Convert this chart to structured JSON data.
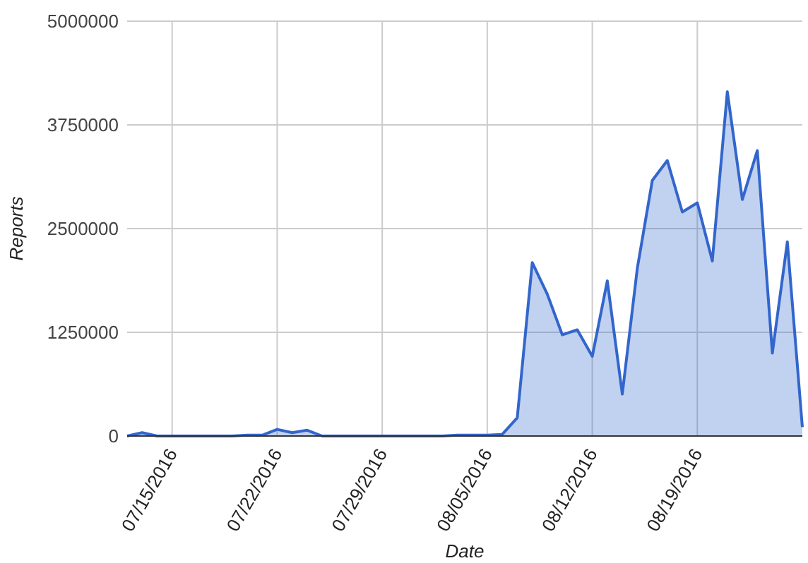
{
  "chart_data": {
    "type": "area",
    "xlabel": "Date",
    "ylabel": "Reports",
    "x": [
      "2016-07-12",
      "2016-07-13",
      "2016-07-14",
      "2016-07-15",
      "2016-07-16",
      "2016-07-17",
      "2016-07-18",
      "2016-07-19",
      "2016-07-20",
      "2016-07-21",
      "2016-07-22",
      "2016-07-23",
      "2016-07-24",
      "2016-07-25",
      "2016-07-26",
      "2016-07-27",
      "2016-07-28",
      "2016-07-29",
      "2016-07-30",
      "2016-07-31",
      "2016-08-01",
      "2016-08-02",
      "2016-08-03",
      "2016-08-04",
      "2016-08-05",
      "2016-08-06",
      "2016-08-07",
      "2016-08-08",
      "2016-08-09",
      "2016-08-10",
      "2016-08-11",
      "2016-08-12",
      "2016-08-13",
      "2016-08-14",
      "2016-08-15",
      "2016-08-16",
      "2016-08-17",
      "2016-08-18",
      "2016-08-19",
      "2016-08-20",
      "2016-08-21",
      "2016-08-22",
      "2016-08-23",
      "2016-08-24",
      "2016-08-25",
      "2016-08-26"
    ],
    "series": [
      {
        "color": "#3366cc",
        "values": [
          0,
          40000,
          0,
          0,
          0,
          0,
          0,
          0,
          10000,
          10000,
          80000,
          40000,
          70000,
          0,
          0,
          0,
          0,
          0,
          0,
          0,
          0,
          0,
          10000,
          10000,
          10000,
          20000,
          220000,
          2090000,
          1710000,
          1220000,
          1280000,
          960000,
          1870000,
          505000,
          2020000,
          3080000,
          3320000,
          2700000,
          2810000,
          2110000,
          4150000,
          2850000,
          3440000,
          1000000,
          2340000,
          107000
        ]
      }
    ],
    "xlim": [
      "2016-07-12",
      "2016-08-26"
    ],
    "xticks": [
      {
        "value": "2016-07-15",
        "label": "07/15/2016"
      },
      {
        "value": "2016-07-22",
        "label": "07/22/2016"
      },
      {
        "value": "2016-07-29",
        "label": "07/29/2016"
      },
      {
        "value": "2016-08-05",
        "label": "08/05/2016"
      },
      {
        "value": "2016-08-12",
        "label": "08/12/2016"
      },
      {
        "value": "2016-08-19",
        "label": "08/19/2016"
      }
    ],
    "ylim": [
      0,
      5000000
    ],
    "yticks": [
      0,
      1250000,
      2500000,
      3750000,
      5000000
    ],
    "grid": true
  }
}
